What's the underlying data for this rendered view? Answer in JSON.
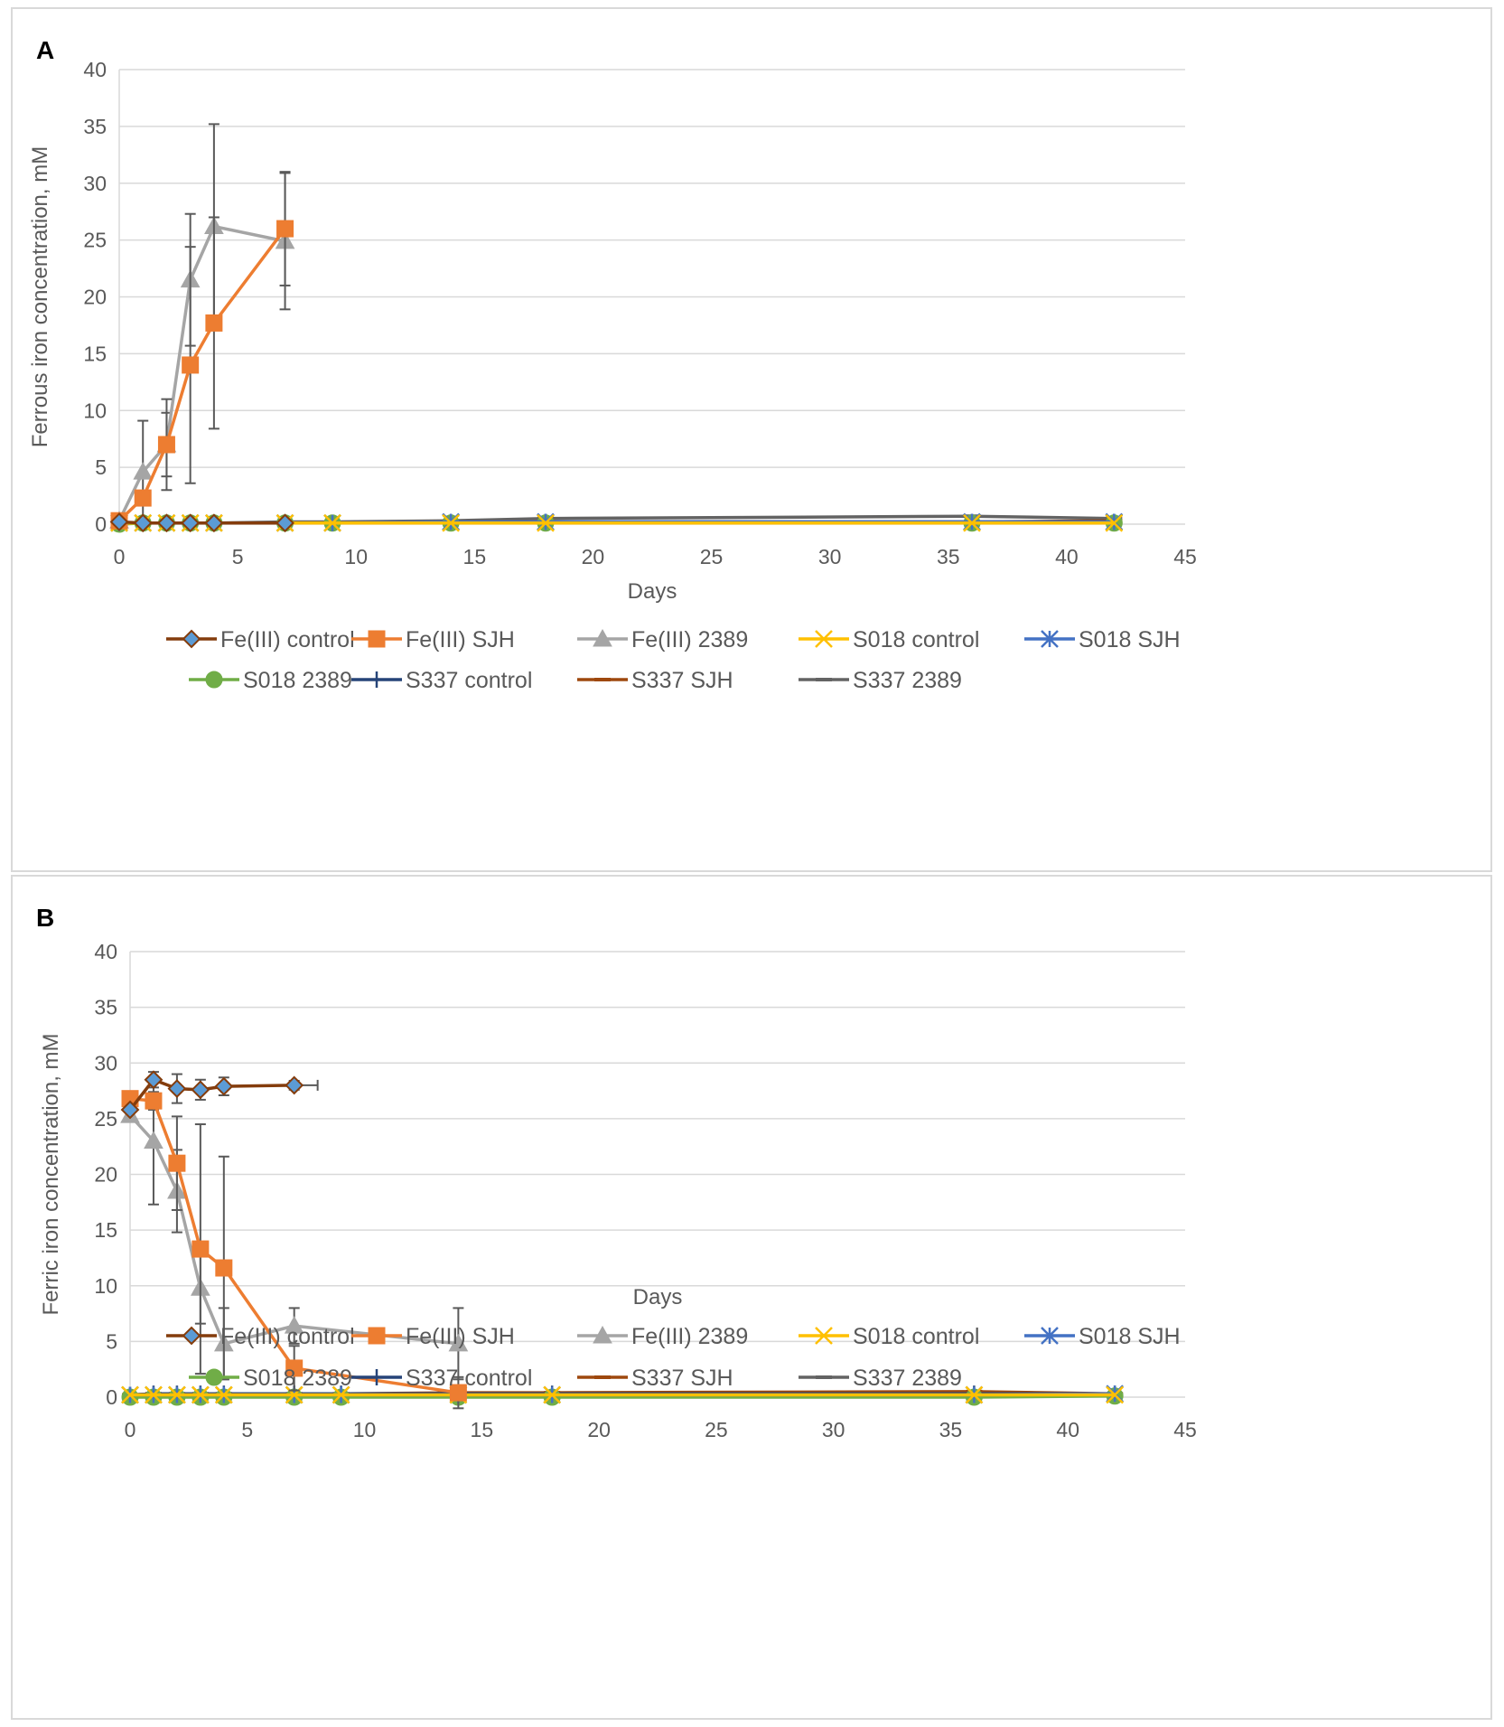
{
  "chart_data": [
    {
      "type": "line",
      "panel_label": "A",
      "xlabel": "Days",
      "ylabel": "Ferrous iron concentration, mM",
      "xlim": [
        0,
        45
      ],
      "ylim": [
        0,
        40
      ],
      "xticks": [
        0,
        5,
        10,
        15,
        20,
        25,
        30,
        35,
        40,
        45
      ],
      "yticks": [
        0,
        5,
        10,
        15,
        20,
        25,
        30,
        35,
        40
      ],
      "grid": true,
      "legend_position": "bottom",
      "series": [
        {
          "name": "Fe(III) control",
          "color": "#843C0C",
          "marker": "diamond",
          "marker_fill": "#5B9BD5",
          "x": [
            0,
            1,
            2,
            3,
            4,
            7
          ],
          "y": [
            0.2,
            0.1,
            0.1,
            0.1,
            0.1,
            0.1
          ],
          "err": []
        },
        {
          "name": "Fe(III) SJH",
          "color": "#ED7D31",
          "marker": "square",
          "marker_fill": "#ED7D31",
          "x": [
            0,
            1,
            2,
            3,
            4,
            7
          ],
          "y": [
            0.3,
            2.3,
            7.0,
            14.0,
            17.7,
            26.0
          ],
          "err": [
            0,
            0,
            4.0,
            10.4,
            9.3,
            5.0
          ]
        },
        {
          "name": "Fe(III) 2389",
          "color": "#A5A5A5",
          "marker": "triangle",
          "marker_fill": "#A5A5A5",
          "x": [
            0,
            1,
            2,
            3,
            4,
            7
          ],
          "y": [
            0.3,
            4.6,
            7.0,
            21.5,
            26.2,
            24.9
          ],
          "err": [
            0,
            4.5,
            2.8,
            5.8,
            9.0,
            6.0
          ]
        },
        {
          "name": "S018 control",
          "color": "#FFC000",
          "marker": "x",
          "marker_fill": "#FFC000",
          "x": [
            0,
            1,
            2,
            3,
            4,
            7,
            9,
            14,
            18,
            36,
            42
          ],
          "y": [
            0.1,
            0.1,
            0.1,
            0.1,
            0.1,
            0.1,
            0.1,
            0.1,
            0.1,
            0.1,
            0.1
          ],
          "err": []
        },
        {
          "name": "S018 SJH",
          "color": "#4472C4",
          "marker": "star",
          "marker_fill": "#4472C4",
          "x": [
            0,
            1,
            2,
            3,
            4,
            7,
            9,
            14,
            18,
            36,
            42
          ],
          "y": [
            0.1,
            0.1,
            0.1,
            0.1,
            0.1,
            0.1,
            0.1,
            0.2,
            0.2,
            0.2,
            0.2
          ],
          "err": []
        },
        {
          "name": "S018 2389",
          "color": "#70AD47",
          "marker": "circle",
          "marker_fill": "#70AD47",
          "x": [
            0,
            1,
            2,
            3,
            4,
            7,
            9,
            14,
            18,
            36,
            42
          ],
          "y": [
            0.0,
            0.1,
            0.1,
            0.1,
            0.1,
            0.1,
            0.1,
            0.1,
            0.1,
            0.1,
            0.1
          ],
          "err": []
        },
        {
          "name": "S337 control",
          "color": "#264478",
          "marker": "plus",
          "marker_fill": "#264478",
          "x": [
            0,
            1,
            2,
            3,
            4,
            7,
            9,
            14,
            18,
            36,
            42
          ],
          "y": [
            0.1,
            0.1,
            0.1,
            0.1,
            0.1,
            0.1,
            0.1,
            0.1,
            0.2,
            0.2,
            0.2
          ],
          "err": []
        },
        {
          "name": "S337 SJH",
          "color": "#9E480E",
          "marker": "dash",
          "marker_fill": "#9E480E",
          "x": [
            0,
            1,
            2,
            3,
            4,
            7,
            9,
            14,
            18,
            36,
            42
          ],
          "y": [
            0.1,
            0.1,
            0.1,
            0.1,
            0.1,
            0.1,
            0.1,
            0.2,
            0.2,
            0.2,
            0.3
          ],
          "err": []
        },
        {
          "name": "S337 2389",
          "color": "#636363",
          "marker": "dash",
          "marker_fill": "#636363",
          "x": [
            0,
            1,
            2,
            3,
            4,
            7,
            9,
            14,
            18,
            36,
            42
          ],
          "y": [
            0.1,
            0.1,
            0.1,
            0.1,
            0.1,
            0.2,
            0.2,
            0.3,
            0.5,
            0.7,
            0.5
          ],
          "err": []
        }
      ]
    },
    {
      "type": "line",
      "panel_label": "B",
      "xlabel": "Days",
      "ylabel": "Ferric iron concentration, mM",
      "xlim": [
        0,
        45
      ],
      "ylim": [
        0,
        40
      ],
      "xticks": [
        0,
        5,
        10,
        15,
        20,
        25,
        30,
        35,
        40,
        45
      ],
      "yticks": [
        0,
        5,
        10,
        15,
        20,
        25,
        30,
        35,
        40
      ],
      "grid": true,
      "legend_position": "bottom",
      "series": [
        {
          "name": "Fe(III) control",
          "color": "#843C0C",
          "marker": "diamond",
          "marker_fill": "#5B9BD5",
          "x": [
            0,
            1,
            2,
            3,
            4,
            7
          ],
          "y": [
            25.8,
            28.5,
            27.7,
            27.6,
            27.9,
            28.0
          ],
          "err": [
            0,
            0.7,
            1.3,
            0.9,
            0.8,
            0.4
          ],
          "xerr": [
            0,
            0,
            0,
            0,
            0,
            1.0
          ]
        },
        {
          "name": "Fe(III) SJH",
          "color": "#ED7D31",
          "marker": "square",
          "marker_fill": "#ED7D31",
          "x": [
            0,
            1,
            2,
            3,
            4,
            7,
            14
          ],
          "y": [
            26.8,
            26.6,
            21.0,
            13.3,
            11.6,
            2.6,
            0.4
          ],
          "err": [
            0,
            0.8,
            4.2,
            11.2,
            10.0,
            2.0,
            1.4
          ]
        },
        {
          "name": "Fe(III) 2389",
          "color": "#A5A5A5",
          "marker": "triangle",
          "marker_fill": "#A5A5A5",
          "x": [
            0,
            1,
            2,
            3,
            4,
            7,
            14
          ],
          "y": [
            25.3,
            23.0,
            18.5,
            9.8,
            4.8,
            6.4,
            4.8
          ],
          "err": [
            0,
            5.7,
            3.7,
            3.2,
            3.2,
            1.6,
            3.2
          ]
        },
        {
          "name": "S018 control",
          "color": "#FFC000",
          "marker": "x",
          "marker_fill": "#FFC000",
          "x": [
            0,
            1,
            2,
            3,
            4,
            7,
            9,
            14,
            18,
            36,
            42
          ],
          "y": [
            0.2,
            0.2,
            0.2,
            0.2,
            0.2,
            0.2,
            0.2,
            0.2,
            0.2,
            0.2,
            0.2
          ],
          "err": []
        },
        {
          "name": "S018 SJH",
          "color": "#4472C4",
          "marker": "star",
          "marker_fill": "#4472C4",
          "x": [
            0,
            1,
            2,
            3,
            4,
            7,
            9,
            14,
            18,
            36,
            42
          ],
          "y": [
            0.2,
            0.2,
            0.2,
            0.2,
            0.2,
            0.2,
            0.2,
            0.2,
            0.2,
            0.2,
            0.3
          ],
          "err": []
        },
        {
          "name": "S018 2389",
          "color": "#70AD47",
          "marker": "circle",
          "marker_fill": "#70AD47",
          "x": [
            0,
            1,
            2,
            3,
            4,
            7,
            9,
            14,
            18,
            36,
            42
          ],
          "y": [
            0.0,
            0.0,
            0.0,
            0.0,
            0.0,
            0.0,
            0.0,
            0.0,
            0.0,
            0.0,
            0.1
          ],
          "err": []
        },
        {
          "name": "S337 control",
          "color": "#264478",
          "marker": "plus",
          "marker_fill": "#264478",
          "x": [
            0,
            1,
            2,
            3,
            4,
            7,
            9,
            14,
            18,
            36,
            42
          ],
          "y": [
            0.2,
            0.3,
            0.3,
            0.3,
            0.3,
            0.3,
            0.3,
            0.3,
            0.3,
            0.3,
            0.3
          ],
          "err": []
        },
        {
          "name": "S337 SJH",
          "color": "#9E480E",
          "marker": "dash",
          "marker_fill": "#9E480E",
          "x": [
            0,
            1,
            2,
            3,
            4,
            7,
            9,
            14,
            18,
            36,
            42
          ],
          "y": [
            0.2,
            0.3,
            0.3,
            0.3,
            0.3,
            0.3,
            0.3,
            0.4,
            0.4,
            0.5,
            0.3
          ],
          "err": []
        },
        {
          "name": "S337 2389",
          "color": "#636363",
          "marker": "dash",
          "marker_fill": "#636363",
          "x": [
            0,
            1,
            2,
            3,
            4,
            7,
            9,
            14,
            18,
            36,
            42
          ],
          "y": [
            0.1,
            0.1,
            0.1,
            0.1,
            0.1,
            0.1,
            0.1,
            0.2,
            0.2,
            0.2,
            0.2
          ],
          "err": []
        }
      ]
    }
  ]
}
